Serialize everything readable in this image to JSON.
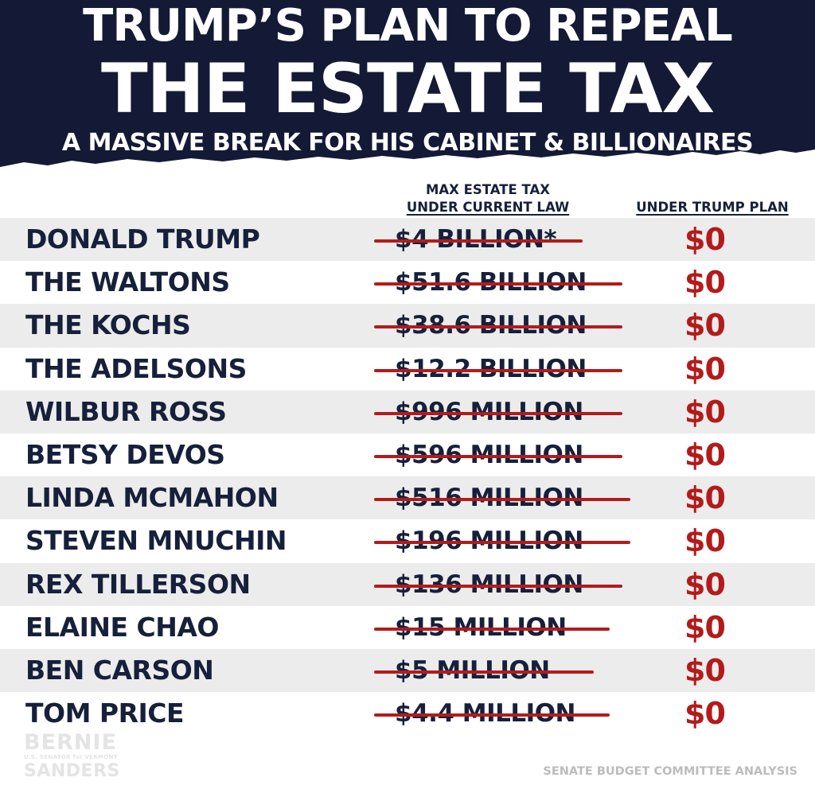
{
  "header": {
    "title_line1": "TRUMP’S PLAN TO REPEAL",
    "title_line2": "THE ESTATE TAX",
    "subtitle": "A MASSIVE BREAK FOR HIS CABINET & BILLIONAIRES",
    "background_color": "#141a35",
    "text_color": "#ffffff"
  },
  "columns": {
    "current_line1": "MAX ESTATE TAX",
    "current_line2": "UNDER CURRENT LAW",
    "trump": "UNDER TRUMP PLAN"
  },
  "rows": [
    {
      "name": "DONALD TRUMP",
      "current": "$4 BILLION*",
      "trump": "$0"
    },
    {
      "name": "THE WALTONS",
      "current": "$51.6 BILLION",
      "trump": "$0"
    },
    {
      "name": "THE KOCHS",
      "current": "$38.6 BILLION",
      "trump": "$0"
    },
    {
      "name": "THE ADELSONS",
      "current": "$12.2 BILLION",
      "trump": "$0"
    },
    {
      "name": "WILBUR ROSS",
      "current": "$996 MILLION",
      "trump": "$0"
    },
    {
      "name": "BETSY DEVOS",
      "current": "$596 MILLION",
      "trump": "$0"
    },
    {
      "name": "LINDA MCMAHON",
      "current": "$516 MILLION",
      "trump": "$0"
    },
    {
      "name": "STEVEN MNUCHIN",
      "current": "$196 MILLION",
      "trump": "$0"
    },
    {
      "name": "REX TILLERSON",
      "current": "$136 MILLION",
      "trump": "$0"
    },
    {
      "name": "ELAINE CHAO",
      "current": "$15 MILLION",
      "trump": "$0"
    },
    {
      "name": "BEN CARSON",
      "current": "$5 MILLION",
      "trump": "$0"
    },
    {
      "name": "TOM PRICE",
      "current": "$4.4 MILLION",
      "trump": "$0"
    }
  ],
  "logo": {
    "line1": "BERNIE",
    "line2": "U.S. SENATOR for VERMONT",
    "line3": "SANDERS"
  },
  "source": "SENATE BUDGET COMMITTEE ANALYSIS",
  "colors": {
    "navy": "#16203a",
    "red": "#b31b1b",
    "row_shade": "#ececec"
  }
}
